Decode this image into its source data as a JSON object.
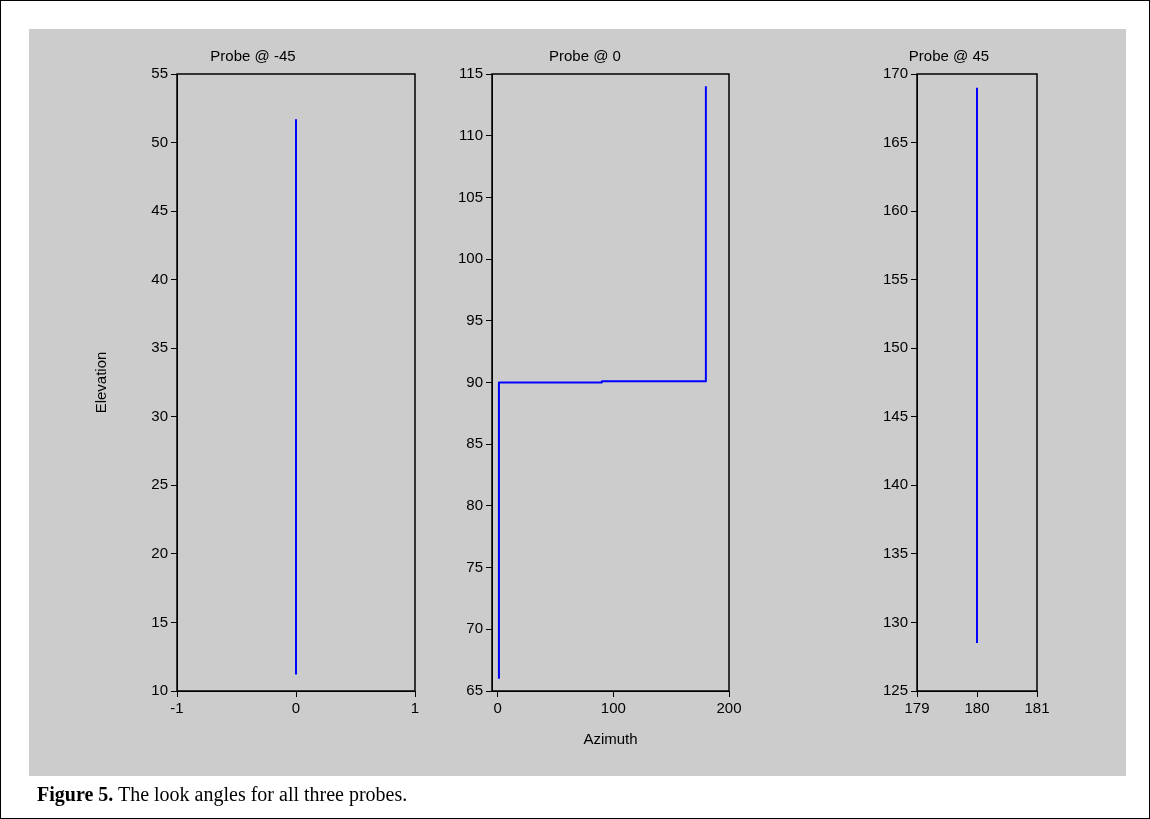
{
  "chart_data": [
    {
      "type": "line",
      "title": "Probe @ -45",
      "ylabel": "Elevation",
      "series": [
        {
          "color": "#0000ff",
          "x": [
            0,
            0
          ],
          "values": [
            11.2,
            51.7
          ]
        }
      ],
      "xlim": [
        -1,
        1
      ],
      "xticks": [
        -1,
        0,
        1
      ],
      "ylim": [
        10,
        55
      ],
      "yticks": [
        10,
        15,
        20,
        25,
        30,
        35,
        40,
        45,
        50,
        55
      ],
      "grid": false,
      "annotations": [
        "Figure 5. The look angles for all three probes."
      ]
    },
    {
      "type": "line",
      "title": "Probe @ 0",
      "xlabel": "Azimuth",
      "series": [
        {
          "color": "#0000ff",
          "x": [
            1,
            1,
            90,
            90,
            180,
            180
          ],
          "values": [
            66,
            90,
            90,
            90.1,
            90.1,
            114
          ]
        }
      ],
      "xlim": [
        -5,
        200
      ],
      "xticks": [
        0,
        100,
        200
      ],
      "ylim": [
        65,
        115
      ],
      "yticks": [
        65,
        70,
        75,
        80,
        85,
        90,
        95,
        100,
        105,
        110,
        115
      ],
      "grid": false
    },
    {
      "type": "line",
      "title": "Probe @ 45",
      "series": [
        {
          "color": "#0000ff",
          "x": [
            180,
            180
          ],
          "values": [
            128.5,
            169
          ]
        }
      ],
      "xlim": [
        179,
        181
      ],
      "xticks": [
        179,
        180,
        181
      ],
      "ylim": [
        125,
        170
      ],
      "yticks": [
        125,
        130,
        135,
        140,
        145,
        150,
        155,
        160,
        165,
        170
      ],
      "grid": false
    }
  ]
}
